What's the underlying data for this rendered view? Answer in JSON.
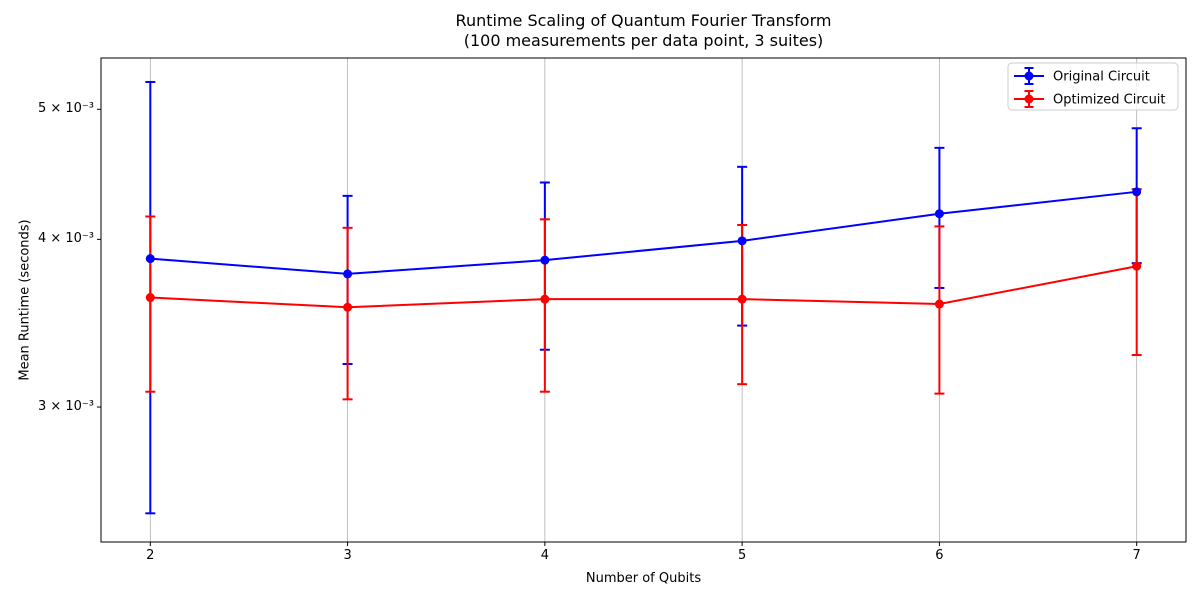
{
  "chart_data": {
    "type": "line",
    "title": "Runtime Scaling of Quantum Fourier Transform",
    "subtitle": "(100 measurements per data point, 3 suites)",
    "xlabel": "Number of Qubits",
    "ylabel": "Mean Runtime (seconds)",
    "x": [
      2,
      3,
      4,
      5,
      6,
      7
    ],
    "xtick_labels": [
      "2",
      "3",
      "4",
      "5",
      "6",
      "7"
    ],
    "yscale": "log",
    "yticks": [
      0.003,
      0.004,
      0.005
    ],
    "ytick_labels": [
      "3 × 10⁻³",
      "4 × 10⁻³",
      "5 × 10⁻³"
    ],
    "xlim": [
      1.75,
      7.25
    ],
    "ylim": [
      0.00238,
      0.00546
    ],
    "grid": "vertical-only",
    "grid_color": "#b0b0b0",
    "axis_color": "#000000",
    "background_color": "#ffffff",
    "legend": {
      "position": "upper right",
      "border_color": "#cccccc"
    },
    "series": [
      {
        "name": "Original Circuit",
        "color": "#0000ff",
        "marker": "circle",
        "values": [
          0.00387,
          0.00377,
          0.00386,
          0.00399,
          0.00418,
          0.00434
        ],
        "errors": [
          0.00137,
          0.00054,
          0.00055,
          0.00054,
          0.0005,
          0.0005
        ]
      },
      {
        "name": "Optimized Circuit",
        "color": "#ff0000",
        "marker": "circle",
        "values": [
          0.00362,
          0.00356,
          0.00361,
          0.00361,
          0.00358,
          0.00382
        ],
        "errors": [
          0.00054,
          0.00052,
          0.00053,
          0.00049,
          0.00051,
          0.00054
        ]
      }
    ]
  }
}
